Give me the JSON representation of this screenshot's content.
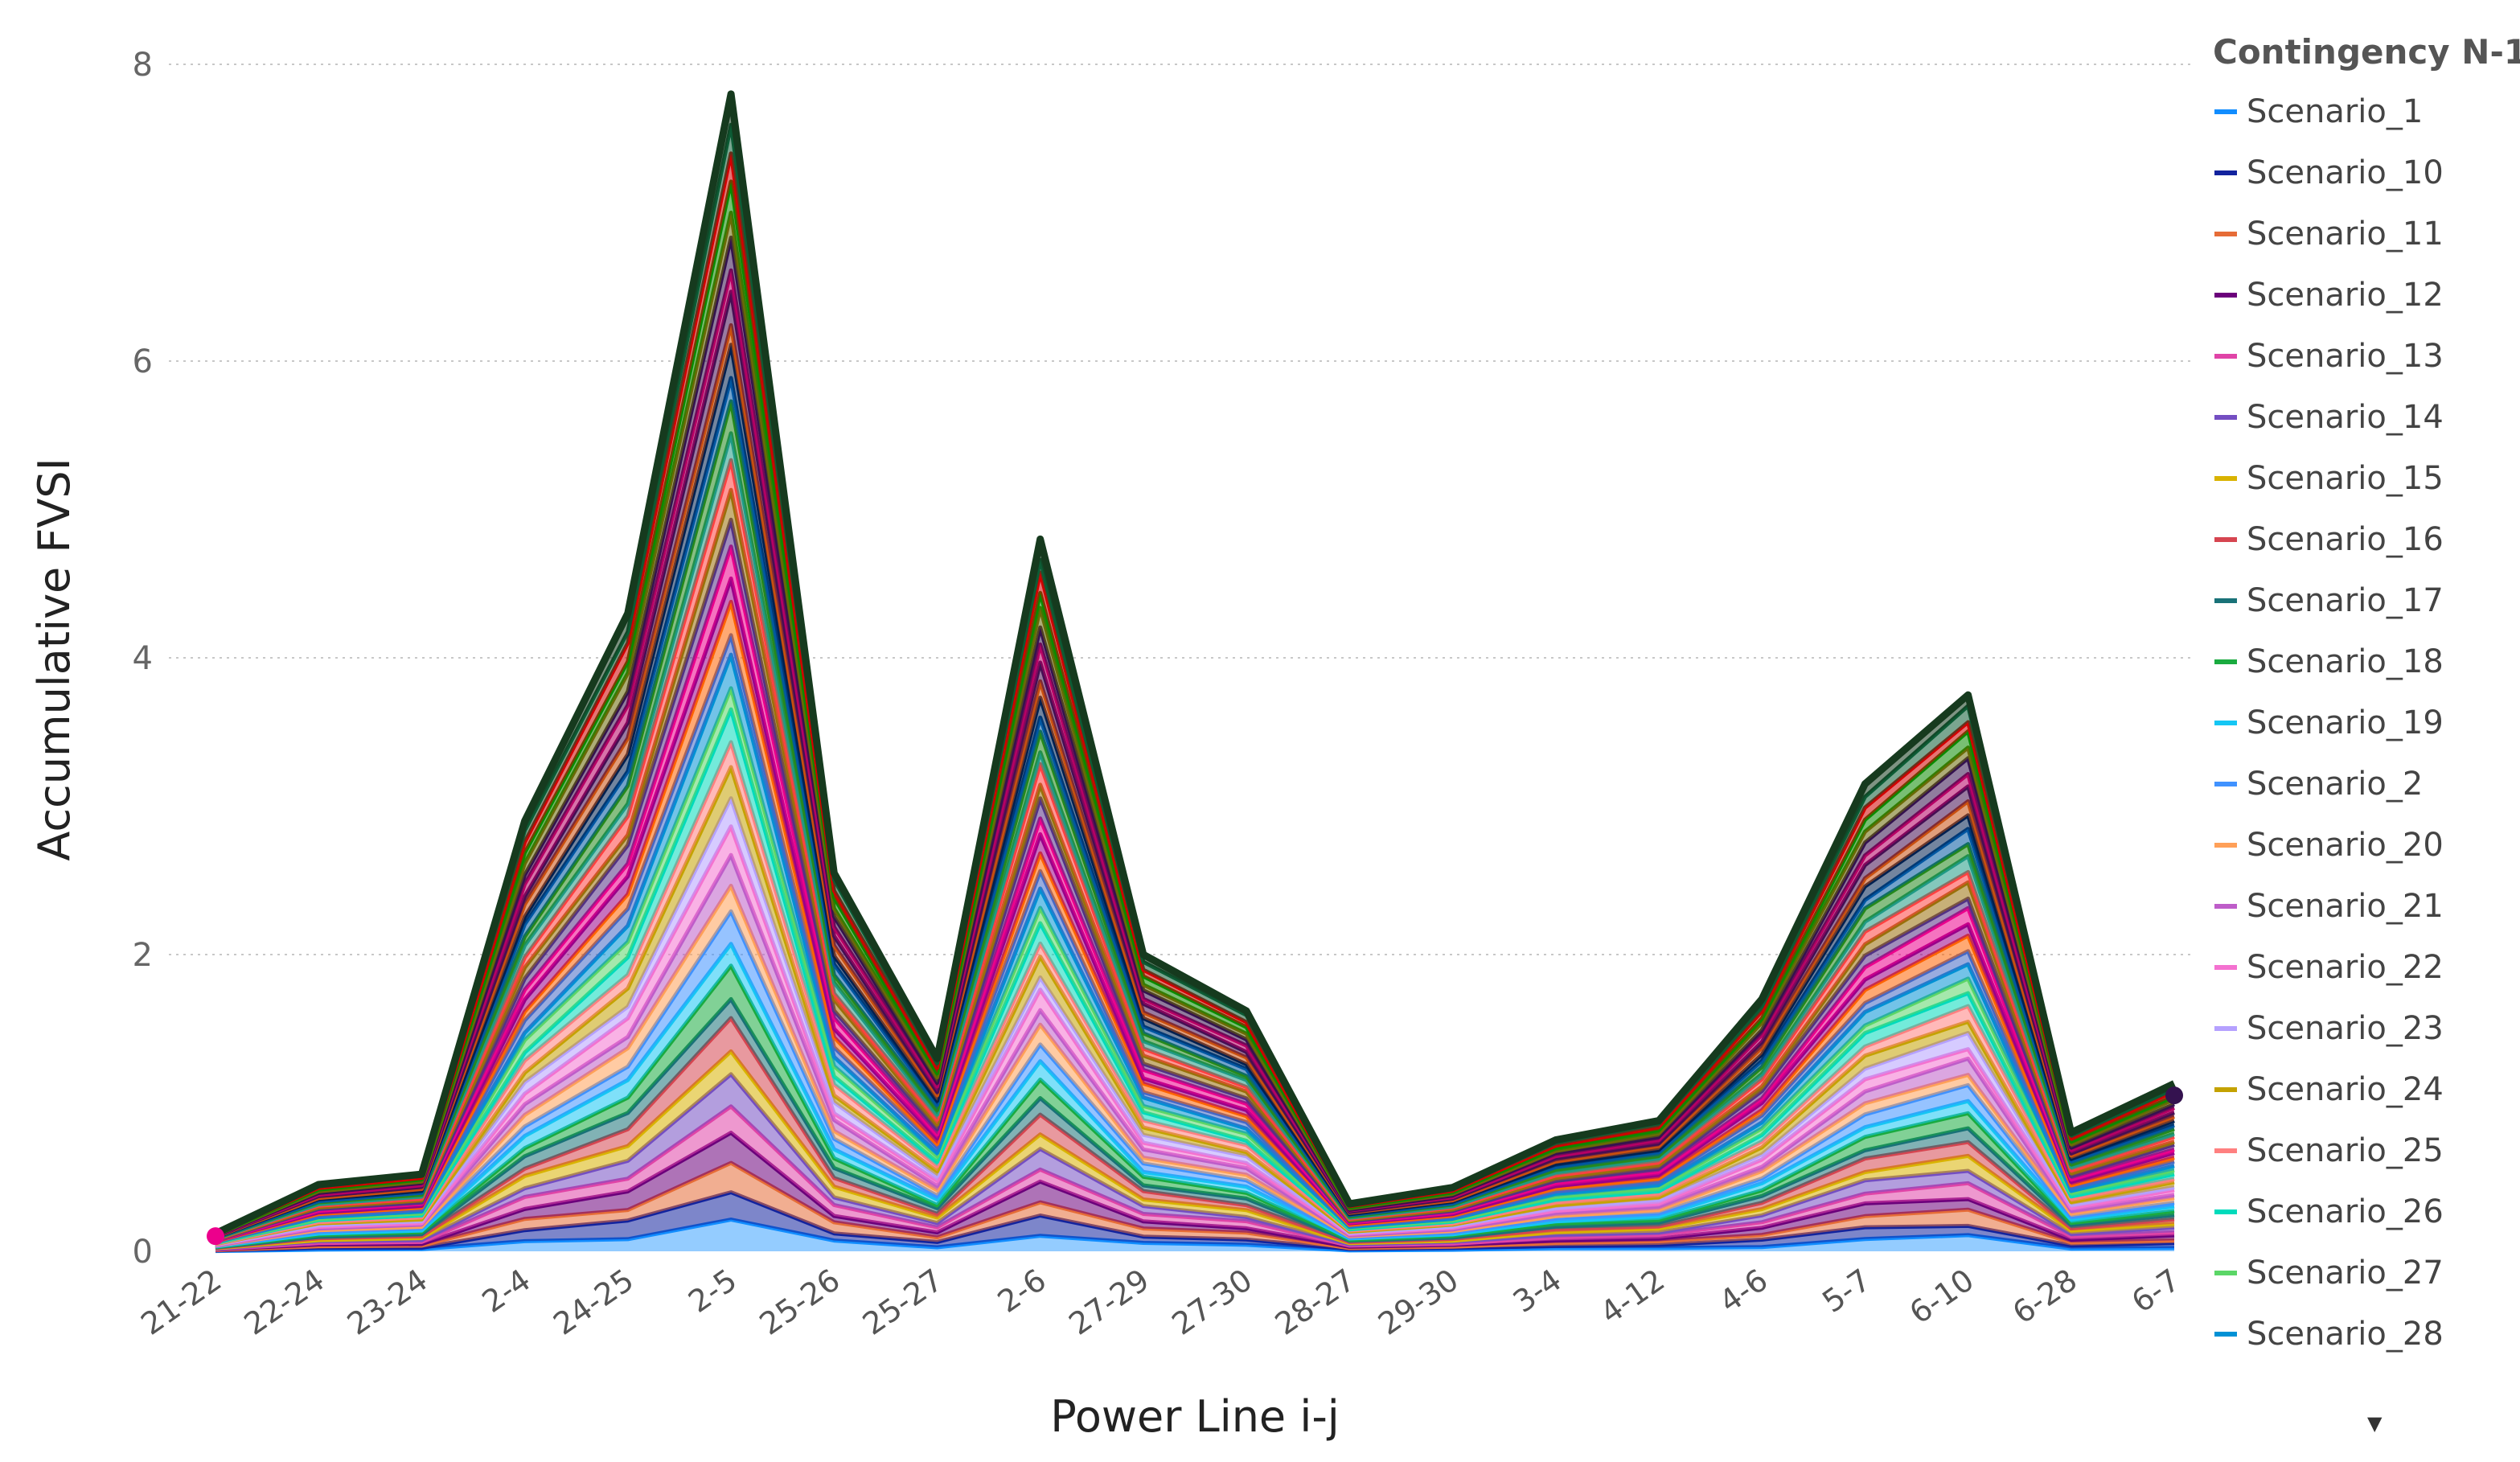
{
  "chart_data": {
    "type": "area",
    "xlabel": "Power Line i-j",
    "ylabel": "Accumulative FVSI",
    "ylim": [
      0,
      8
    ],
    "yticks": [
      0,
      2,
      4,
      6,
      8
    ],
    "grid": true,
    "legend_placement": "right",
    "legend_title": "Contingency N-1",
    "categories": [
      "21-22",
      "22-24",
      "23-24",
      "2-4",
      "24-25",
      "2-5",
      "25-26",
      "25-27",
      "2-6",
      "27-29",
      "27-30",
      "28-27",
      "29-30",
      "3-4",
      "4-12",
      "4-6",
      "5-7",
      "6-10",
      "6-28",
      "6-7"
    ],
    "total": [
      0.12,
      0.45,
      0.52,
      2.9,
      4.3,
      7.8,
      2.55,
      1.3,
      4.8,
      2.0,
      1.62,
      0.32,
      0.43,
      0.75,
      0.88,
      1.7,
      3.15,
      3.75,
      0.8,
      1.13
    ],
    "series": [
      {
        "name": "Scenario_1",
        "color": "#118DFF"
      },
      {
        "name": "Scenario_10",
        "color": "#12239E"
      },
      {
        "name": "Scenario_11",
        "color": "#E66C37"
      },
      {
        "name": "Scenario_12",
        "color": "#6B007B"
      },
      {
        "name": "Scenario_13",
        "color": "#E044A7"
      },
      {
        "name": "Scenario_14",
        "color": "#744EC2"
      },
      {
        "name": "Scenario_15",
        "color": "#D9B300"
      },
      {
        "name": "Scenario_16",
        "color": "#D64550"
      },
      {
        "name": "Scenario_17",
        "color": "#197278"
      },
      {
        "name": "Scenario_18",
        "color": "#1AAB40"
      },
      {
        "name": "Scenario_19",
        "color": "#15C6F4"
      },
      {
        "name": "Scenario_2",
        "color": "#4092FF"
      },
      {
        "name": "Scenario_20",
        "color": "#FFA058"
      },
      {
        "name": "Scenario_21",
        "color": "#BE5DC9"
      },
      {
        "name": "Scenario_22",
        "color": "#F472D0"
      },
      {
        "name": "Scenario_23",
        "color": "#B5A1FF"
      },
      {
        "name": "Scenario_24",
        "color": "#C4A200"
      },
      {
        "name": "Scenario_25",
        "color": "#FF8080"
      },
      {
        "name": "Scenario_26",
        "color": "#00DBBC"
      },
      {
        "name": "Scenario_27",
        "color": "#5BD667"
      },
      {
        "name": "Scenario_28",
        "color": "#0091D5"
      }
    ],
    "extra_layer_colors": [
      "#4668C5",
      "#FF6300",
      "#99008A",
      "#EC008C",
      "#533285",
      "#99700A",
      "#FF4141",
      "#1F9A85",
      "#25891C",
      "#0057A2",
      "#002050",
      "#C94F0F",
      "#450F54",
      "#B60064",
      "#34124F",
      "#6A6A06",
      "#0A8A00",
      "#D10000",
      "#0C5C35",
      "#163A1E"
    ],
    "dropdown_icon": "caret-down-icon"
  }
}
